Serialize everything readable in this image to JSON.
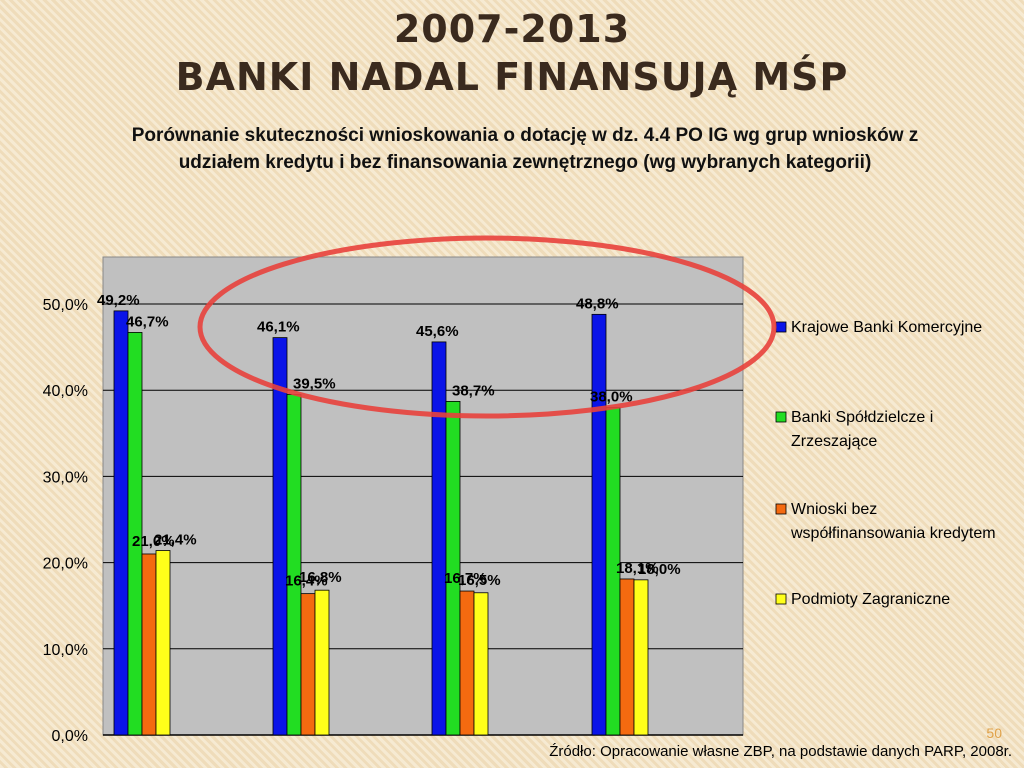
{
  "slide": {
    "title_line1": "2007-2013",
    "title_line2": "BANKI NADAL FINANSUJĄ MŚP",
    "page_number": "50",
    "source": "Źródło: Opracowanie własne ZBP, na podstawie danych PARP, 2008r.",
    "highlight_color": "#e8413c"
  },
  "chart_data": {
    "type": "bar",
    "title": "Porównanie skuteczności wnioskowania o dotację w dz. 4.4 PO IG wg grup wniosków z udziałem kredytu i bez finansowania zewnętrznego (wg wybranych kategorii)",
    "categories": [
      "",
      "",
      "",
      ""
    ],
    "series": [
      {
        "name": "Krajowe Banki Komercyjne",
        "color": "#0a14e8",
        "values": [
          49.2,
          46.1,
          45.6,
          48.8
        ],
        "labels": [
          "49,2%",
          "46,1%",
          "45,6%",
          "48,8%"
        ]
      },
      {
        "name": "Banki Spółdzielcze i Zrzeszające",
        "color": "#22dd22",
        "values": [
          46.7,
          39.5,
          38.7,
          38.0
        ],
        "labels": [
          "46,7%",
          "39,5%",
          "38,7%",
          "38,0%"
        ]
      },
      {
        "name": "Wnioski bez współfinansowania kredytem",
        "color": "#f46a10",
        "values": [
          21.0,
          16.4,
          16.7,
          18.1
        ],
        "labels": [
          "21,0%",
          "16,4%",
          "16,7%",
          "18,1%"
        ]
      },
      {
        "name": "Podmioty Zagraniczne",
        "color": "#ffff1a",
        "values": [
          21.4,
          16.8,
          16.5,
          18.0
        ],
        "labels": [
          "21,4%",
          "16,8%",
          "16,5%",
          "18,0%"
        ]
      }
    ],
    "yticks": [
      "0,0%",
      "10,0%",
      "20,0%",
      "30,0%",
      "40,0%",
      "50,0%"
    ],
    "ylim": [
      0,
      55
    ],
    "grid": true,
    "legend": "right",
    "plot_background": "#c0c0c0"
  }
}
